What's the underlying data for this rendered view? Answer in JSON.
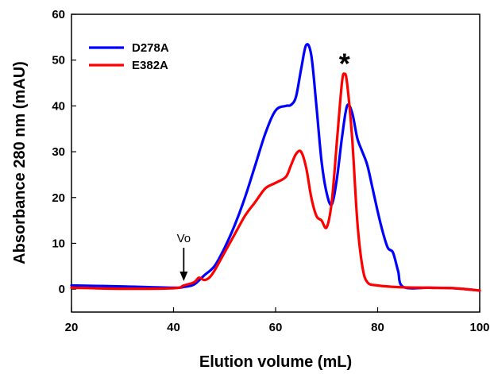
{
  "chart_data": {
    "type": "line",
    "xlabel": "Elution volume (mL)",
    "ylabel": "Absorbance 280 nm (mAU)",
    "xlim": [
      20,
      100
    ],
    "ylim": [
      -5,
      60
    ],
    "xticks": [
      20,
      40,
      60,
      80,
      100
    ],
    "yticks": [
      0,
      10,
      20,
      30,
      40,
      50,
      60
    ],
    "grid": false,
    "legend_position": "top-left",
    "series": [
      {
        "name": "D278A",
        "color": "#0000ff",
        "x": [
          20,
          30,
          40,
          42,
          44,
          46,
          48,
          50,
          52,
          54,
          56,
          58,
          60,
          62,
          63,
          64,
          65,
          66,
          67,
          68,
          69,
          70,
          71,
          72,
          73,
          74,
          75,
          76,
          77,
          78,
          79,
          80,
          81,
          82,
          83,
          84,
          85,
          90,
          95,
          100
        ],
        "y": [
          0.8,
          0.6,
          0.3,
          0.5,
          1.0,
          3.0,
          5.0,
          9.0,
          14.0,
          20.0,
          27.0,
          34.0,
          39.0,
          40.0,
          40.2,
          42.0,
          48.0,
          53.3,
          51.0,
          40.0,
          28.0,
          21.0,
          18.5,
          24.0,
          33.0,
          40.0,
          38.5,
          33.0,
          30.0,
          27.0,
          22.0,
          17.0,
          12.5,
          9.0,
          8.0,
          4.0,
          0.5,
          0.3,
          0.2,
          -0.3
        ]
      },
      {
        "name": "E382A",
        "color": "#ff0000",
        "x": [
          20,
          30,
          40,
          42,
          44,
          45,
          46,
          47,
          48,
          50,
          52,
          54,
          56,
          58,
          60,
          62,
          63,
          64,
          65,
          66,
          67,
          68,
          69,
          70,
          71,
          72,
          73,
          73.5,
          74,
          75,
          76,
          77,
          78,
          80,
          85,
          90,
          95,
          100
        ],
        "y": [
          0.3,
          0.1,
          0.2,
          0.8,
          1.5,
          2.5,
          2.0,
          2.5,
          4.0,
          8.0,
          12.0,
          16.0,
          19.0,
          22.0,
          23.2,
          24.5,
          27.0,
          29.5,
          30.0,
          26.5,
          20.0,
          16.0,
          15.0,
          13.5,
          19.0,
          32.0,
          45.0,
          47.0,
          45.0,
          33.0,
          15.0,
          5.0,
          1.5,
          0.8,
          0.4,
          0.3,
          0.2,
          -0.3
        ]
      }
    ],
    "annotations": [
      {
        "text": "Vo",
        "x": 42,
        "y": 0,
        "type": "arrow"
      },
      {
        "text": "*",
        "x": 73.5,
        "y": 48.5,
        "type": "marker"
      }
    ]
  }
}
